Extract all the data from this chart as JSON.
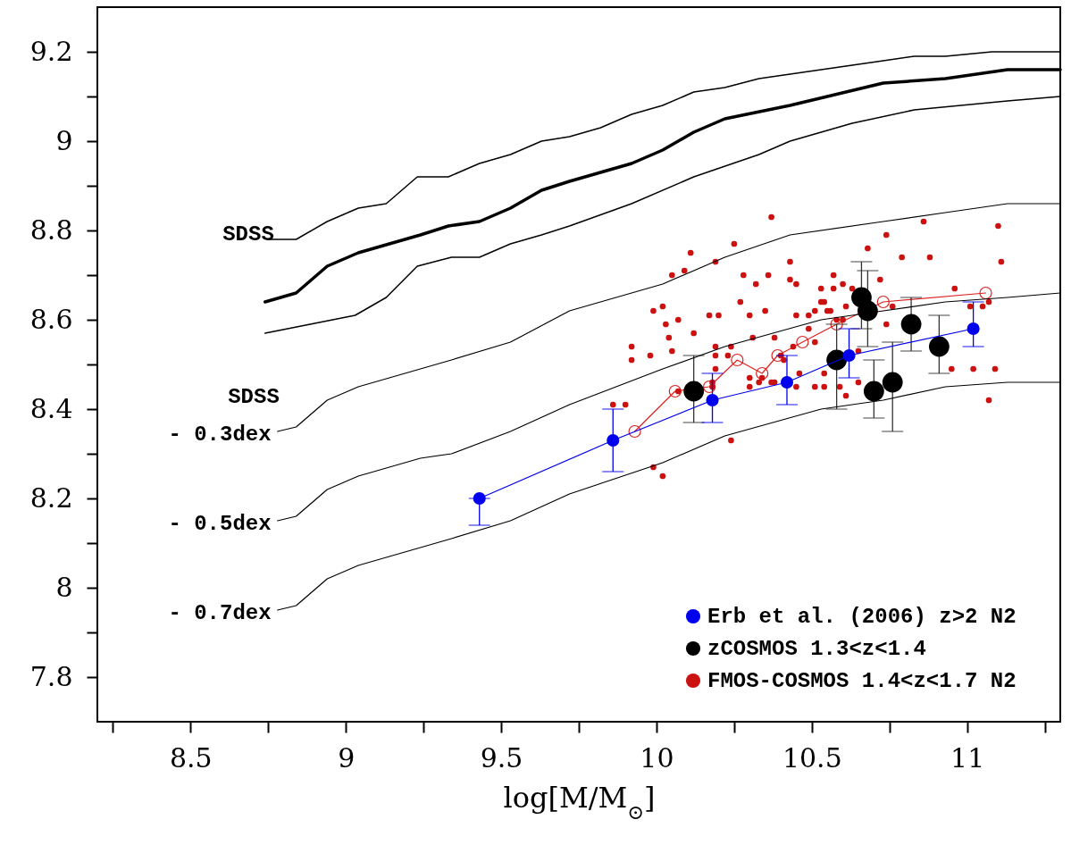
{
  "chart_data": {
    "type": "line",
    "xlabel": "log[M/M$_{⊙}$]",
    "xlim": [
      8.2,
      11.3
    ],
    "ylim": [
      7.7,
      9.3
    ],
    "xticks": [
      {
        "value": 8.25,
        "label": null
      },
      8.5,
      {
        "value": 8.75,
        "label": null
      },
      9,
      {
        "value": 9.25,
        "label": null
      },
      9.5,
      {
        "value": 9.75,
        "label": null
      },
      10,
      {
        "value": 10.25,
        "label": null
      },
      10.5,
      {
        "value": 10.75,
        "label": null
      },
      11,
      {
        "value": 11.25,
        "label": null
      }
    ],
    "yticks": [
      7.8,
      {
        "value": 7.9,
        "label": null
      },
      8,
      {
        "value": 8.1,
        "label": null
      },
      8.2,
      {
        "value": 8.3,
        "label": null
      },
      8.4,
      {
        "value": 8.5,
        "label": null
      },
      8.6,
      {
        "value": 8.7,
        "label": null
      },
      8.8,
      {
        "value": 8.9,
        "label": null
      },
      9,
      {
        "value": 9.1,
        "label": null
      },
      9.2
    ],
    "grid": false,
    "legend": "bottom right",
    "line_style": "solid",
    "annotations": [
      "SDSS",
      "SDSS",
      "- 0.3dex",
      "- 0.5dex",
      "- 0.7dex"
    ],
    "series": [
      {
        "type": "line",
        "marker": "none",
        "color": "#000000",
        "x": [
          8.75,
          8.84,
          8.94,
          9.04,
          9.13,
          9.23,
          9.33,
          9.43,
          9.53,
          9.63,
          9.72,
          9.82,
          9.92,
          10.02,
          10.12,
          10.22,
          10.33,
          10.53,
          10.63,
          10.73,
          10.83,
          10.93,
          11.08,
          11.3
        ],
        "values": [
          8.78,
          8.78,
          8.82,
          8.85,
          8.86,
          8.92,
          8.92,
          8.95,
          8.97,
          9.0,
          9.01,
          9.03,
          9.06,
          9.08,
          9.11,
          9.12,
          9.14,
          9.16,
          9.17,
          9.18,
          9.19,
          9.19,
          9.2,
          9.2
        ]
      },
      {
        "type": "line",
        "marker": "none",
        "color": "#000000",
        "x": [
          8.74,
          8.84,
          8.94,
          9.04,
          9.14,
          9.24,
          9.33,
          9.43,
          9.53,
          9.63,
          9.72,
          9.92,
          10.02,
          10.12,
          10.22,
          10.43,
          10.73,
          10.93,
          11.13,
          11.3
        ],
        "values": [
          8.64,
          8.66,
          8.72,
          8.75,
          8.77,
          8.79,
          8.81,
          8.82,
          8.85,
          8.89,
          8.91,
          8.95,
          8.98,
          9.02,
          9.05,
          9.08,
          9.13,
          9.14,
          9.16,
          9.16
        ]
      },
      {
        "type": "line",
        "marker": "none",
        "color": "#000000",
        "x": [
          8.74,
          9.03,
          9.13,
          9.23,
          9.34,
          9.43,
          9.53,
          9.63,
          9.72,
          9.92,
          10.12,
          10.33,
          10.43,
          10.63,
          10.83,
          11.13,
          11.3
        ],
        "values": [
          8.57,
          8.61,
          8.65,
          8.72,
          8.74,
          8.74,
          8.77,
          8.79,
          8.81,
          8.86,
          8.92,
          8.97,
          9.0,
          9.04,
          9.07,
          9.09,
          9.1
        ]
      },
      {
        "type": "line",
        "marker": "none",
        "color": "#000000",
        "x": [
          8.78,
          8.84,
          8.94,
          9.04,
          9.14,
          9.24,
          9.34,
          9.53,
          9.72,
          10.02,
          10.22,
          10.43,
          10.73,
          10.93,
          11.13,
          11.3
        ],
        "values": [
          8.35,
          8.36,
          8.42,
          8.45,
          8.47,
          8.49,
          8.51,
          8.55,
          8.62,
          8.68,
          8.74,
          8.79,
          8.82,
          8.84,
          8.86,
          8.86
        ]
      },
      {
        "type": "line",
        "marker": "none",
        "color": "#000000",
        "x": [
          8.78,
          8.84,
          8.94,
          9.04,
          9.14,
          9.24,
          9.34,
          9.53,
          9.72,
          10.02,
          10.22,
          10.53,
          10.73,
          10.93,
          11.13,
          11.3
        ],
        "values": [
          8.15,
          8.16,
          8.22,
          8.25,
          8.27,
          8.29,
          8.3,
          8.35,
          8.41,
          8.49,
          8.54,
          8.6,
          8.62,
          8.64,
          8.65,
          8.66
        ]
      },
      {
        "type": "line",
        "marker": "none",
        "color": "#000000",
        "x": [
          8.78,
          8.84,
          8.94,
          9.04,
          9.14,
          9.24,
          9.34,
          9.53,
          9.72,
          10.02,
          10.22,
          10.53,
          10.73,
          10.93,
          11.13,
          11.3
        ],
        "values": [
          7.95,
          7.96,
          8.02,
          8.05,
          8.07,
          8.09,
          8.11,
          8.15,
          8.21,
          8.28,
          8.34,
          8.4,
          8.42,
          8.45,
          8.46,
          8.46
        ]
      },
      {
        "name": "Erb et al. (2006) z>2 N2",
        "type": "line",
        "marker": "circle",
        "color": "#0000ee",
        "x": [
          9.43,
          9.86,
          10.18,
          10.42,
          10.62,
          11.02
        ],
        "values": [
          8.2,
          8.33,
          8.42,
          8.46,
          8.52,
          8.58
        ],
        "errors": [
          [
            8.14,
            8.2
          ],
          [
            8.26,
            8.4
          ],
          [
            8.37,
            8.48
          ],
          [
            8.41,
            8.52
          ],
          [
            8.47,
            8.58
          ],
          [
            8.54,
            8.64
          ]
        ]
      },
      {
        "name": "zCOSMOS  1.3<z<1.4",
        "type": "scatter",
        "marker": "circle",
        "color": "#000000",
        "x": [
          10.12,
          10.58,
          10.66,
          10.68,
          10.7,
          10.76,
          10.82,
          10.91
        ],
        "values": [
          8.44,
          8.51,
          8.65,
          8.62,
          8.44,
          8.46,
          8.59,
          8.54
        ],
        "errors": [
          [
            8.37,
            8.52
          ],
          [
            8.4,
            8.59
          ],
          [
            8.58,
            8.73
          ],
          [
            8.54,
            8.71
          ],
          [
            8.38,
            8.51
          ],
          [
            8.35,
            8.55
          ],
          [
            8.53,
            8.65
          ],
          [
            8.48,
            8.61
          ]
        ]
      },
      {
        "name": "FMOS-COSMOS  1.4<z<1.7 N2",
        "type": "scatter",
        "marker": "circle",
        "color": "#cc1111",
        "x": [
          10.25,
          10.11,
          10.19,
          10.09,
          10.05,
          10.28,
          10.32,
          10.02,
          9.99,
          10.27,
          10.3,
          10.17,
          10.2,
          10.03,
          10.07,
          10.12,
          10.04,
          10.31,
          9.92,
          9.92,
          9.98,
          10.05,
          10.19,
          10.24,
          10.19,
          10.23,
          10.19,
          10.3,
          10.18,
          9.86,
          9.9,
          10.24,
          9.99,
          10.37,
          10.43,
          10.86,
          10.74,
          11.1,
          10.68,
          10.79,
          10.88,
          11.11,
          10.36,
          10.43,
          10.45,
          10.57,
          10.6,
          10.63,
          10.72,
          10.53,
          10.57,
          10.35,
          10.45,
          10.49,
          10.51,
          10.53,
          10.54,
          10.55,
          10.56,
          10.61,
          10.58,
          10.6,
          10.49,
          10.74,
          10.96,
          11.01,
          11.05,
          11.07,
          10.76,
          10.38,
          10.3,
          10.33,
          10.38,
          10.45,
          10.46,
          10.51,
          10.54,
          10.59,
          10.65,
          10.65,
          10.54,
          10.61,
          10.95,
          11.02,
          11.09,
          11.07,
          10.02,
          10.07,
          10.18,
          10.34,
          10.41,
          10.4,
          10.44,
          10.51,
          10.37
        ],
        "values": [
          8.77,
          8.75,
          8.73,
          8.71,
          8.7,
          8.7,
          8.68,
          8.63,
          8.62,
          8.64,
          8.61,
          8.61,
          8.61,
          8.59,
          8.6,
          8.57,
          8.56,
          8.56,
          8.54,
          8.51,
          8.52,
          8.53,
          8.54,
          8.54,
          8.52,
          8.52,
          8.49,
          8.45,
          8.45,
          8.41,
          8.41,
          8.33,
          8.27,
          8.83,
          8.73,
          8.82,
          8.79,
          8.81,
          8.76,
          8.74,
          8.74,
          8.73,
          8.7,
          8.69,
          8.68,
          8.7,
          8.68,
          8.67,
          8.69,
          8.67,
          8.67,
          8.62,
          8.61,
          8.61,
          8.62,
          8.64,
          8.64,
          8.62,
          8.62,
          8.63,
          8.6,
          8.6,
          8.58,
          8.59,
          8.67,
          8.63,
          8.63,
          8.64,
          8.63,
          8.56,
          8.47,
          8.46,
          8.46,
          8.45,
          8.48,
          8.45,
          8.45,
          8.45,
          8.46,
          8.53,
          8.48,
          8.43,
          8.49,
          8.49,
          8.49,
          8.42,
          8.25,
          8.44,
          8.46,
          8.47,
          8.51,
          8.52,
          8.54,
          8.55,
          8.46
        ]
      },
      {
        "type": "line",
        "marker": "circle",
        "color": "#dd2222",
        "x": [
          9.93,
          10.06,
          10.17,
          10.26,
          10.34,
          10.39,
          10.47,
          10.58,
          10.73,
          11.06
        ],
        "values": [
          8.35,
          8.44,
          8.45,
          8.51,
          8.48,
          8.52,
          8.55,
          8.59,
          8.64,
          8.66
        ]
      }
    ]
  }
}
